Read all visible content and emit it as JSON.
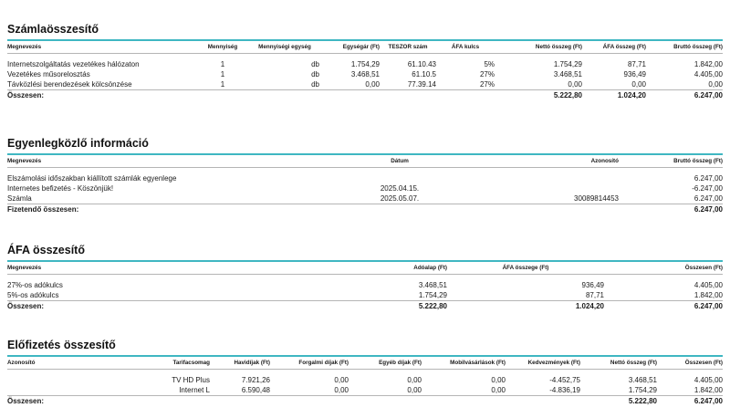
{
  "invoice_summary": {
    "title": "Számlaösszesítő",
    "headers": [
      "Megnevezés",
      "Mennyiség",
      "Mennyiségi egység",
      "Egységár (Ft)",
      "TESZOR szám",
      "ÁFA kulcs",
      "Nettó összeg (Ft)",
      "ÁFA összeg (Ft)",
      "Bruttó összeg (Ft)"
    ],
    "rows": [
      [
        "Internetszolgáltatás vezetékes hálózaton",
        "1",
        "db",
        "1.754,29",
        "61.10.43",
        "5%",
        "1.754,29",
        "87,71",
        "1.842,00"
      ],
      [
        "Vezetékes műsorelosztás",
        "1",
        "db",
        "3.468,51",
        "61.10.5",
        "27%",
        "3.468,51",
        "936,49",
        "4.405,00"
      ],
      [
        "Távközlési berendezések kölcsönzése",
        "1",
        "db",
        "0,00",
        "77.39.14",
        "27%",
        "0,00",
        "0,00",
        "0,00"
      ]
    ],
    "total": [
      "Összesen:",
      "",
      "",
      "",
      "",
      "",
      "5.222,80",
      "1.024,20",
      "6.247,00"
    ]
  },
  "balance_info": {
    "title": "Egyenlegközlő információ",
    "headers": [
      "Megnevezés",
      "Dátum",
      "Azonosító",
      "Bruttó összeg (Ft)"
    ],
    "rows": [
      [
        "Elszámolási időszakban kiállított számlák egyenlege",
        "",
        "",
        "6.247,00"
      ],
      [
        "Internetes befizetés - Köszönjük!",
        "2025.04.15.",
        "",
        "-6.247,00"
      ],
      [
        "Számla",
        "2025.05.07.",
        "30089814453",
        "6.247,00"
      ]
    ],
    "total": [
      "Fizetendő összesen:",
      "",
      "",
      "6.247,00"
    ]
  },
  "vat_summary": {
    "title": "ÁFA összesítő",
    "headers": [
      "Megnevezés",
      "Adóalap (Ft)",
      "ÁFA összege (Ft)",
      "Összesen (Ft)"
    ],
    "rows": [
      [
        "27%-os adókulcs",
        "3.468,51",
        "936,49",
        "4.405,00"
      ],
      [
        "5%-os adókulcs",
        "1.754,29",
        "87,71",
        "1.842,00"
      ]
    ],
    "total": [
      "Összesen:",
      "5.222,80",
      "1.024,20",
      "6.247,00"
    ]
  },
  "subscription_summary": {
    "title": "Előfizetés összesítő",
    "headers": [
      "Azonosító",
      "Tarifacsomag",
      "Havidíjak (Ft)",
      "Forgalmi díjak (Ft)",
      "Egyéb díjak (Ft)",
      "Mobilvásárlások (Ft)",
      "Kedvezmények (Ft)",
      "Nettó összeg (Ft)",
      "Összesen (Ft)"
    ],
    "rows": [
      [
        "",
        "TV HD Plus",
        "7.921,26",
        "0,00",
        "0,00",
        "0,00",
        "-4.452,75",
        "3.468,51",
        "4.405,00"
      ],
      [
        "",
        "Internet L",
        "6.590,48",
        "0,00",
        "0,00",
        "0,00",
        "-4.836,19",
        "1.754,29",
        "1.842,00"
      ]
    ],
    "total": [
      "Összesen:",
      "",
      "",
      "",
      "",
      "",
      "",
      "5.222,80",
      "6.247,00"
    ]
  }
}
